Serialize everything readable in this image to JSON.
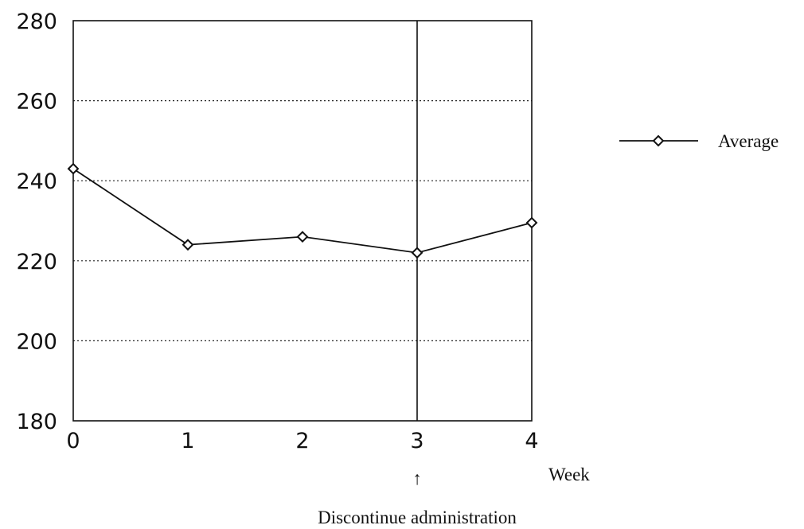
{
  "chart_data": {
    "type": "line",
    "x": [
      0,
      1,
      2,
      3,
      4
    ],
    "series": [
      {
        "name": "Average",
        "values": [
          243,
          224,
          226,
          222,
          229.5
        ]
      }
    ],
    "xlabel": "Week",
    "ylabel": "",
    "xlim": [
      0,
      4
    ],
    "ylim": [
      180,
      280
    ],
    "x_ticks": [
      "0",
      "1",
      "2",
      "3",
      "4"
    ],
    "y_ticks": [
      "180",
      "200",
      "220",
      "240",
      "260",
      "280"
    ],
    "grid": "horizontal dotted",
    "legend": "right",
    "annotation": {
      "x": 3,
      "arrow": "↑",
      "text": "Discontinue administration"
    }
  }
}
